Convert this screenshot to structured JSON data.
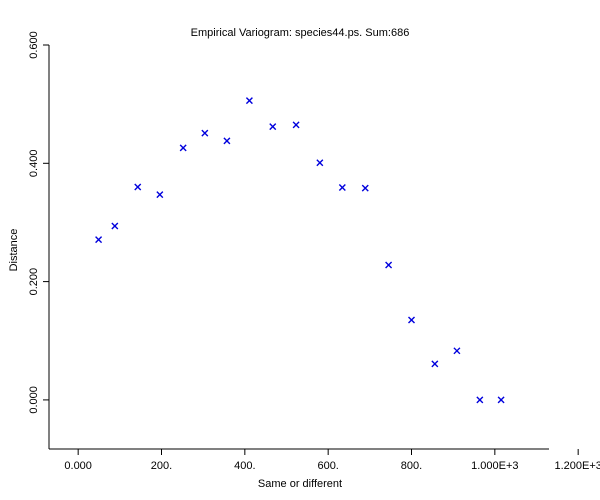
{
  "chart_data": {
    "type": "scatter",
    "title": "Empirical Variogram: species44.ps. Sum:686",
    "xlabel": "Same or different",
    "ylabel": "Distance",
    "xlim": [
      -70,
      1130
    ],
    "ylim": [
      -0.083,
      0.6
    ],
    "x_ticks": [
      0,
      200,
      400,
      600,
      800,
      1000,
      1200
    ],
    "x_tick_labels": [
      "0.000",
      "200.",
      "400.",
      "600.",
      "800.",
      "1.000E+3",
      "1.200E+3"
    ],
    "y_ticks": [
      0.0,
      0.2,
      0.4,
      0.6
    ],
    "y_tick_labels": [
      "0.000",
      "0.200",
      "0.400",
      "0.600"
    ],
    "marker": "x",
    "marker_color": "#0000dd",
    "grid": false,
    "legend": "none",
    "points": [
      {
        "x": 49,
        "y": 0.271
      },
      {
        "x": 88,
        "y": 0.294
      },
      {
        "x": 143,
        "y": 0.36
      },
      {
        "x": 196,
        "y": 0.347
      },
      {
        "x": 252,
        "y": 0.426
      },
      {
        "x": 304,
        "y": 0.451
      },
      {
        "x": 357,
        "y": 0.438
      },
      {
        "x": 411,
        "y": 0.506
      },
      {
        "x": 467,
        "y": 0.462
      },
      {
        "x": 523,
        "y": 0.465
      },
      {
        "x": 580,
        "y": 0.401
      },
      {
        "x": 634,
        "y": 0.359
      },
      {
        "x": 689,
        "y": 0.358
      },
      {
        "x": 745,
        "y": 0.228
      },
      {
        "x": 800,
        "y": 0.135
      },
      {
        "x": 856,
        "y": 0.061
      },
      {
        "x": 909,
        "y": 0.083
      },
      {
        "x": 964,
        "y": 0.0
      },
      {
        "x": 1015,
        "y": 0.0
      }
    ]
  }
}
